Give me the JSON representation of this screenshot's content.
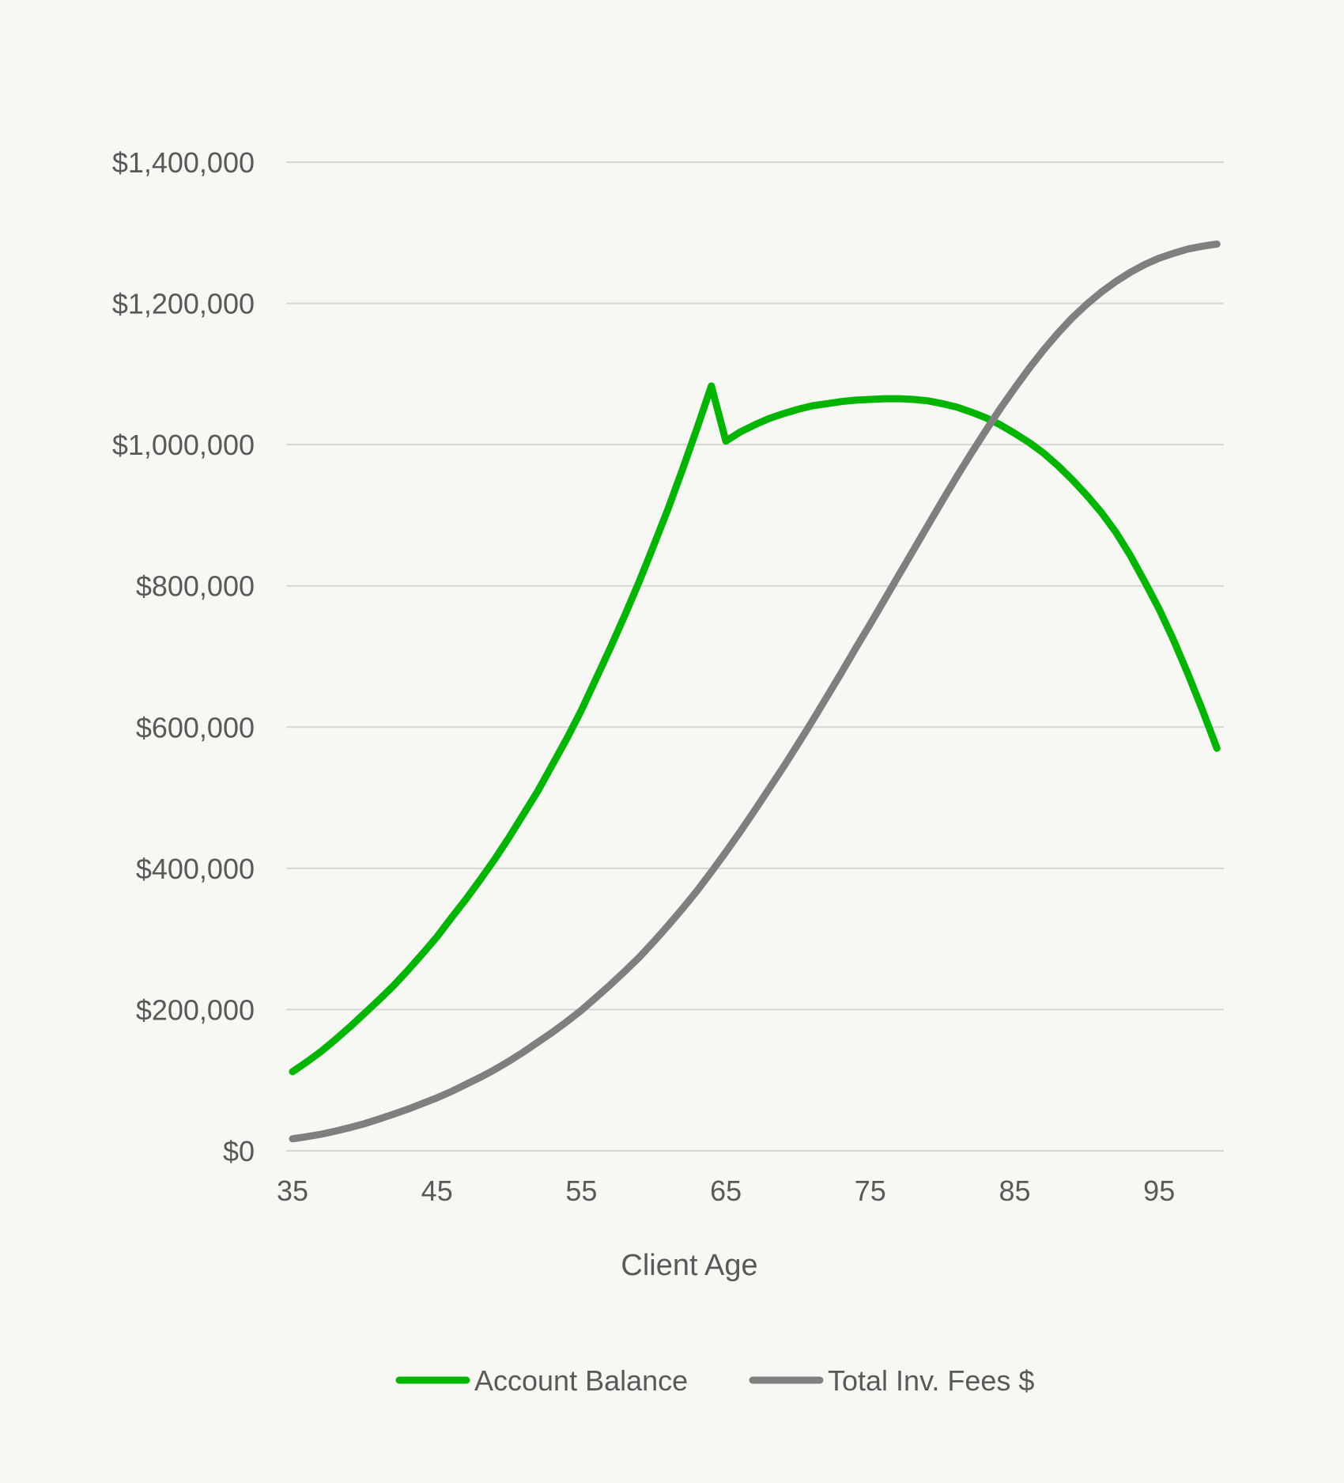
{
  "chart_data": {
    "type": "line",
    "xlabel": "Client Age",
    "ylabel": "",
    "xlim": [
      35,
      99
    ],
    "ylim": [
      0,
      1400000
    ],
    "x_ticks": [
      35,
      45,
      55,
      65,
      75,
      85,
      95
    ],
    "y_ticks": [
      0,
      200000,
      400000,
      600000,
      800000,
      1000000,
      1200000,
      1400000
    ],
    "y_tick_labels": [
      "$0",
      "$200,000",
      "$400,000",
      "$600,000",
      "$800,000",
      "$1,000,000",
      "$1,200,000",
      "$1,400,000"
    ],
    "grid": "horizontal",
    "legend_position": "bottom",
    "x": [
      35,
      36,
      37,
      38,
      39,
      40,
      41,
      42,
      43,
      44,
      45,
      46,
      47,
      48,
      49,
      50,
      51,
      52,
      53,
      54,
      55,
      56,
      57,
      58,
      59,
      60,
      61,
      62,
      63,
      64,
      65,
      66,
      67,
      68,
      69,
      70,
      71,
      72,
      73,
      74,
      75,
      76,
      77,
      78,
      79,
      80,
      81,
      82,
      83,
      84,
      85,
      86,
      87,
      88,
      89,
      90,
      91,
      92,
      93,
      94,
      95,
      96,
      97,
      98,
      99
    ],
    "series": [
      {
        "name": "Account Balance",
        "color": "#00b400",
        "values": [
          112000,
          126000,
          141000,
          158000,
          176000,
          195000,
          214000,
          234000,
          256000,
          279000,
          303000,
          330000,
          356000,
          384000,
          413000,
          444000,
          477000,
          510000,
          547000,
          584000,
          624000,
          668000,
          712000,
          758000,
          806000,
          857000,
          909000,
          965000,
          1023000,
          1083000,
          1005000,
          1018000,
          1028000,
          1037000,
          1044000,
          1050000,
          1055000,
          1058000,
          1061000,
          1063000,
          1064000,
          1065000,
          1065000,
          1064000,
          1062000,
          1058000,
          1053000,
          1046000,
          1038000,
          1028000,
          1016000,
          1003000,
          988000,
          970000,
          950000,
          928000,
          904000,
          876000,
          843000,
          806000,
          767000,
          723000,
          675000,
          624000,
          570000
        ]
      },
      {
        "name": "Total Inv. Fees $",
        "color": "#7f7f7f",
        "values": [
          17000,
          20000,
          23500,
          28000,
          33000,
          38500,
          45000,
          52000,
          59000,
          67000,
          75000,
          84000,
          94000,
          104000,
          115000,
          127000,
          140000,
          154000,
          168000,
          183000,
          199000,
          217000,
          235000,
          254000,
          274000,
          296000,
          319000,
          343000,
          368000,
          395000,
          423000,
          452000,
          482000,
          513000,
          544000,
          576000,
          609000,
          643000,
          677000,
          712000,
          746000,
          781000,
          816000,
          851000,
          886000,
          921000,
          955000,
          988000,
          1020000,
          1051000,
          1080000,
          1108000,
          1134000,
          1158000,
          1180000,
          1199000,
          1216000,
          1231000,
          1244000,
          1255000,
          1264000,
          1271000,
          1277000,
          1281000,
          1284000
        ]
      }
    ]
  }
}
